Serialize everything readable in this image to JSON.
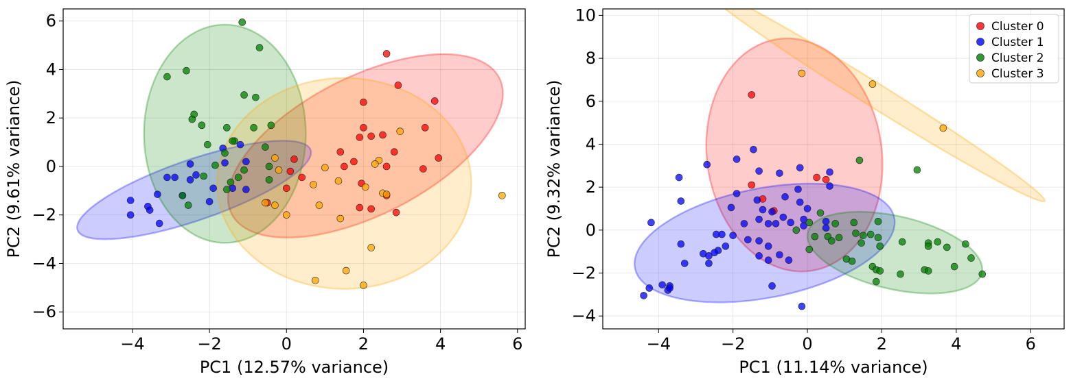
{
  "chart_data": [
    {
      "type": "scatter",
      "xlabel": "PC1 (12.57% variance)",
      "ylabel": "PC2 (9.61% variance)",
      "xlim": [
        -5.8,
        6.2
      ],
      "ylim": [
        -6.7,
        6.5
      ],
      "xticks": [
        -4,
        -2,
        0,
        2,
        4,
        6
      ],
      "yticks": [
        -6,
        -4,
        -2,
        0,
        2,
        4,
        6
      ],
      "grid": true,
      "legend": null,
      "series": [
        {
          "color": "#ff0000",
          "points": [
            [
              2.6,
              4.65
            ],
            [
              2.9,
              3.35
            ],
            [
              3.85,
              2.7
            ],
            [
              2.0,
              2.65
            ],
            [
              3.6,
              1.6
            ],
            [
              2.0,
              1.6
            ],
            [
              1.9,
              1.2
            ],
            [
              2.2,
              1.25
            ],
            [
              2.5,
              1.3
            ],
            [
              1.4,
              0.6
            ],
            [
              2.8,
              0.6
            ],
            [
              3.95,
              0.35
            ],
            [
              0.2,
              0.3
            ],
            [
              1.75,
              0.2
            ],
            [
              1.5,
              0.0
            ],
            [
              2.6,
              0.0
            ],
            [
              0.4,
              -0.45
            ],
            [
              1.95,
              -0.7
            ],
            [
              2.6,
              -1.2
            ],
            [
              0.0,
              -0.9
            ],
            [
              1.9,
              -1.7
            ],
            [
              2.2,
              -1.75
            ],
            [
              2.85,
              -1.9
            ],
            [
              0.1,
              -0.2
            ],
            [
              -0.5,
              -1.5
            ],
            [
              3.55,
              -0.1
            ]
          ]
        },
        {
          "color": "#0000ff",
          "points": [
            [
              -1.2,
              0.9
            ],
            [
              -1.65,
              0.75
            ],
            [
              -1.05,
              0.2
            ],
            [
              -2.5,
              0.1
            ],
            [
              -1.6,
              0.15
            ],
            [
              -2.9,
              -0.45
            ],
            [
              -3.1,
              -0.45
            ],
            [
              -2.5,
              -0.55
            ],
            [
              -1.9,
              -0.9
            ],
            [
              -1.4,
              -0.9
            ],
            [
              -2.7,
              -1.2
            ],
            [
              -1.05,
              -0.95
            ],
            [
              -2.0,
              -1.45
            ],
            [
              -3.35,
              -1.15
            ],
            [
              -4.05,
              -1.4
            ],
            [
              -3.6,
              -1.65
            ],
            [
              -3.55,
              -1.8
            ],
            [
              -4.05,
              -2.0
            ],
            [
              -3.3,
              -2.35
            ],
            [
              -2.35,
              -0.35
            ]
          ]
        },
        {
          "color": "#008000",
          "points": [
            [
              -1.15,
              5.95
            ],
            [
              -0.7,
              4.9
            ],
            [
              -2.6,
              3.95
            ],
            [
              -3.1,
              3.7
            ],
            [
              -1.1,
              2.95
            ],
            [
              -0.8,
              2.85
            ],
            [
              -2.4,
              2.15
            ],
            [
              -2.45,
              1.95
            ],
            [
              -2.2,
              1.7
            ],
            [
              -1.55,
              1.6
            ],
            [
              -0.85,
              1.6
            ],
            [
              -0.4,
              1.7
            ],
            [
              -1.35,
              1.05
            ],
            [
              -2.05,
              0.9
            ],
            [
              -1.4,
              1.05
            ],
            [
              -0.55,
              0.8
            ],
            [
              -1.6,
              0.55
            ],
            [
              -1.85,
              0.05
            ],
            [
              -1.1,
              -0.15
            ],
            [
              -2.15,
              -0.4
            ],
            [
              -1.25,
              -0.45
            ],
            [
              -1.45,
              -0.65
            ],
            [
              -1.55,
              -0.95
            ],
            [
              -2.7,
              -1.2
            ],
            [
              -2.55,
              -1.6
            ],
            [
              -0.45,
              0.0
            ],
            [
              -0.45,
              -0.55
            ]
          ]
        },
        {
          "color": "#ffa500",
          "points": [
            [
              5.6,
              -1.2
            ],
            [
              2.95,
              1.45
            ],
            [
              2.4,
              0.25
            ],
            [
              2.3,
              0.1
            ],
            [
              1.0,
              -0.05
            ],
            [
              1.35,
              -0.6
            ],
            [
              0.7,
              -0.75
            ],
            [
              2.05,
              -0.85
            ],
            [
              2.5,
              -1.1
            ],
            [
              2.6,
              -1.15
            ],
            [
              0.85,
              -1.6
            ],
            [
              1.4,
              -2.15
            ],
            [
              -0.3,
              0.35
            ],
            [
              -0.2,
              -0.15
            ],
            [
              -0.3,
              -1.6
            ],
            [
              0.0,
              -2.0
            ],
            [
              2.2,
              -3.35
            ],
            [
              1.55,
              -4.3
            ],
            [
              0.75,
              -4.7
            ],
            [
              2.0,
              -4.9
            ],
            [
              -0.55,
              -1.5
            ]
          ]
        }
      ],
      "ellipses": [
        {
          "color": "#ff0000",
          "cx": 2.05,
          "cy": 0.85,
          "rx": 3.9,
          "ry": 2.85,
          "angle": 27
        },
        {
          "color": "#0000ff",
          "cx": -2.4,
          "cy": -0.97,
          "rx": 3.2,
          "ry": 1.25,
          "angle": 19
        },
        {
          "color": "#008000",
          "cx": -1.6,
          "cy": 1.35,
          "rx": 2.1,
          "ry": 4.5,
          "angle": 0
        },
        {
          "color": "#ffa500",
          "cx": 1.5,
          "cy": -0.7,
          "rx": 3.3,
          "ry": 4.35,
          "angle": 0
        }
      ]
    },
    {
      "type": "scatter",
      "xlabel": "PC1 (11.14% variance)",
      "ylabel": "PC2 (9.32% variance)",
      "xlim": [
        -5.5,
        6.9
      ],
      "ylim": [
        -4.6,
        10.3
      ],
      "xticks": [
        -4,
        -2,
        0,
        2,
        4,
        6
      ],
      "yticks": [
        -4,
        -2,
        0,
        2,
        4,
        6,
        8,
        10
      ],
      "grid": true,
      "legend": {
        "placement": "top-right",
        "entries": [
          "Cluster 0",
          "Cluster 1",
          "Cluster 2",
          "Cluster 3"
        ]
      },
      "series": [
        {
          "name": "Cluster 0",
          "color": "#ff0000",
          "points": [
            [
              -1.5,
              6.3
            ],
            [
              -1.5,
              2.1
            ],
            [
              0.25,
              2.45
            ],
            [
              -0.9,
              0.9
            ],
            [
              0.5,
              2.35
            ],
            [
              -1.2,
              1.45
            ]
          ]
        },
        {
          "name": "Cluster 1",
          "color": "#0000ff",
          "points": [
            [
              -1.45,
              3.75
            ],
            [
              -1.9,
              3.3
            ],
            [
              -2.7,
              3.05
            ],
            [
              -1.3,
              2.75
            ],
            [
              -0.2,
              2.9
            ],
            [
              -0.75,
              2.65
            ],
            [
              0.6,
              2.7
            ],
            [
              0.6,
              2.05
            ],
            [
              -3.45,
              2.45
            ],
            [
              -0.25,
              1.9
            ],
            [
              -1.9,
              1.7
            ],
            [
              -0.6,
              1.55
            ],
            [
              -3.4,
              1.35
            ],
            [
              -1.35,
              1.4
            ],
            [
              -0.2,
              1.3
            ],
            [
              -2.05,
              1.05
            ],
            [
              -1.2,
              0.95
            ],
            [
              -0.95,
              0.85
            ],
            [
              0.0,
              1.0
            ],
            [
              -0.65,
              0.6
            ],
            [
              -0.1,
              0.5
            ],
            [
              0.5,
              0.4
            ],
            [
              -1.3,
              0.5
            ],
            [
              -1.7,
              0.3
            ],
            [
              -0.45,
              0.35
            ],
            [
              -1.05,
              0.3
            ],
            [
              -0.85,
              0.3
            ],
            [
              -0.1,
              0.2
            ],
            [
              0.5,
              0.1
            ],
            [
              -4.2,
              0.35
            ],
            [
              -1.6,
              -0.45
            ],
            [
              -1.3,
              -0.5
            ],
            [
              -1.05,
              -0.75
            ],
            [
              -2.0,
              -0.25
            ],
            [
              -2.3,
              -0.2
            ],
            [
              -2.45,
              -0.2
            ],
            [
              -3.4,
              -0.65
            ],
            [
              -2.2,
              -0.75
            ],
            [
              -2.4,
              -0.95
            ],
            [
              -2.5,
              -1.05
            ],
            [
              -2.65,
              -1.2
            ],
            [
              -2.8,
              -1.1
            ],
            [
              -0.5,
              -1.4
            ],
            [
              -0.75,
              -1.15
            ],
            [
              -1.3,
              -1.2
            ],
            [
              -1.05,
              -1.4
            ],
            [
              -3.3,
              -1.55
            ],
            [
              -2.65,
              -1.55
            ],
            [
              -3.9,
              -2.55
            ],
            [
              -3.7,
              -2.6
            ],
            [
              -3.75,
              -2.8
            ],
            [
              -4.25,
              -2.7
            ],
            [
              -4.4,
              -3.05
            ],
            [
              -0.95,
              -2.6
            ],
            [
              -0.15,
              -3.55
            ],
            [
              -3.7,
              -2.7
            ]
          ]
        },
        {
          "name": "Cluster 2",
          "color": "#008000",
          "points": [
            [
              1.4,
              3.25
            ],
            [
              2.95,
              2.8
            ],
            [
              0.35,
              0.8
            ],
            [
              0.75,
              0.3
            ],
            [
              1.25,
              0.35
            ],
            [
              1.9,
              0.4
            ],
            [
              0.05,
              0.35
            ],
            [
              -0.3,
              0.0
            ],
            [
              0.2,
              -0.3
            ],
            [
              0.55,
              -0.3
            ],
            [
              0.85,
              -0.35
            ],
            [
              1.3,
              -0.15
            ],
            [
              1.5,
              -0.25
            ],
            [
              1.7,
              -0.2
            ],
            [
              2.55,
              -0.55
            ],
            [
              1.9,
              -0.35
            ],
            [
              3.5,
              -0.55
            ],
            [
              3.25,
              -0.6
            ],
            [
              4.25,
              -0.65
            ],
            [
              3.25,
              -0.75
            ],
            [
              3.75,
              -0.8
            ],
            [
              1.95,
              -0.75
            ],
            [
              1.45,
              -0.6
            ],
            [
              0.65,
              -0.5
            ],
            [
              0.05,
              -0.9
            ],
            [
              1.05,
              -1.35
            ],
            [
              1.2,
              -1.45
            ],
            [
              1.75,
              -1.7
            ],
            [
              1.85,
              -1.85
            ],
            [
              1.95,
              -1.9
            ],
            [
              3.15,
              -1.85
            ],
            [
              3.25,
              -1.9
            ],
            [
              3.95,
              -1.7
            ],
            [
              4.4,
              -1.3
            ],
            [
              2.5,
              -2.05
            ],
            [
              4.7,
              -2.05
            ],
            [
              1.85,
              -2.4
            ]
          ]
        },
        {
          "name": "Cluster 3",
          "color": "#ffa500",
          "points": [
            [
              -0.15,
              7.3
            ],
            [
              1.75,
              6.8
            ],
            [
              3.65,
              4.75
            ]
          ]
        }
      ],
      "ellipses": [
        {
          "color": "#ff0000",
          "cx": -0.35,
          "cy": 3.5,
          "rx": 2.35,
          "ry": 5.45,
          "angle": 8
        },
        {
          "color": "#0000ff",
          "cx": -1.15,
          "cy": -0.6,
          "rx": 3.55,
          "ry": 2.55,
          "angle": 11
        },
        {
          "color": "#008000",
          "cx": 2.35,
          "cy": -1.05,
          "rx": 2.4,
          "ry": 1.7,
          "angle": -13
        },
        {
          "color": "#ffa500",
          "cx": 1.8,
          "cy": 6.3,
          "rx": 5.4,
          "ry": 0.55,
          "angle": -32
        }
      ]
    }
  ]
}
